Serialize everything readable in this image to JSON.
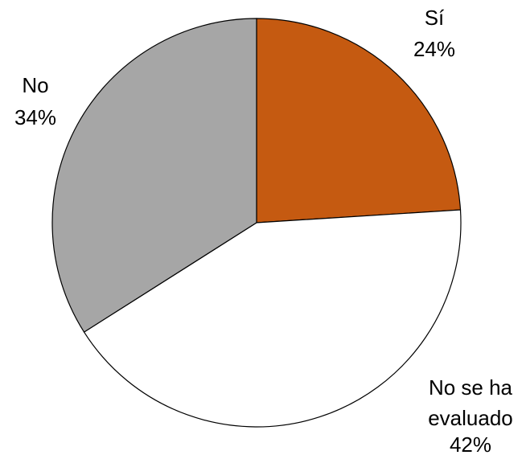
{
  "chart_data": {
    "type": "pie",
    "slices": [
      {
        "label": "Sí",
        "value": 24,
        "value_label": "24%",
        "color": "#c55a11"
      },
      {
        "label": "No se ha evaluado",
        "value": 42,
        "value_label": "42%",
        "color": "#ffffff"
      },
      {
        "label": "No",
        "value": 34,
        "value_label": "34%",
        "color": "#a6a6a6"
      }
    ],
    "start_angle": "12 o'clock",
    "direction": "clockwise",
    "legend": "none",
    "outline_color": "#000000"
  }
}
